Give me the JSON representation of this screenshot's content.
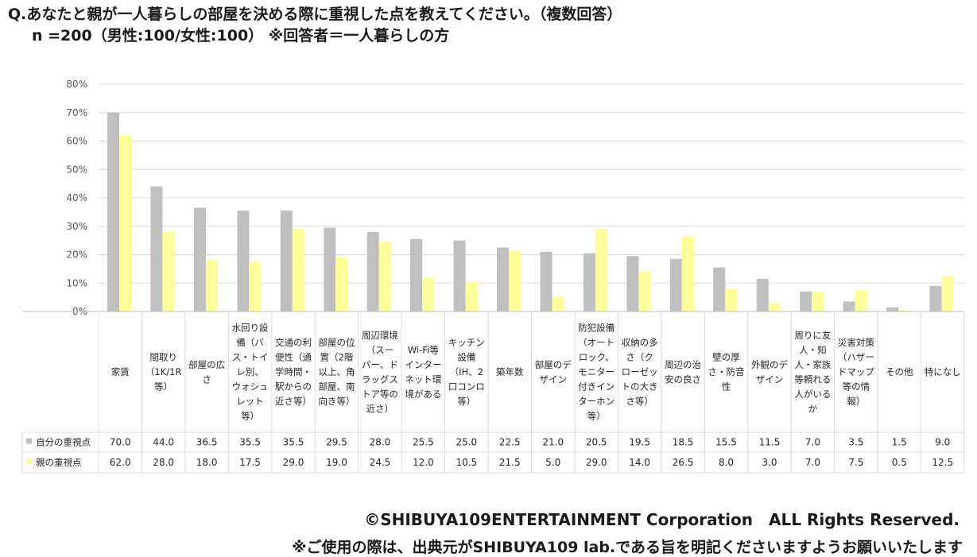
{
  "header": {
    "title": "Q.あなたと親が一人暮らしの部屋を決める際に重視した点を教えてください。（複数回答）",
    "subtitle": "n =200（男性:100/女性:100） ※回答者＝一人暮らしの方"
  },
  "footer": {
    "copyright": "©SHIBUYA109ENTERTAINMENT Corporation　ALL Rights Reserved.",
    "notice": "※ご使用の際は、出典元がSHIBUYA109 lab.である旨を明記くださいますようお願いいたします"
  },
  "chart_data": {
    "type": "bar",
    "ylim": [
      0,
      80
    ],
    "yticks": [
      "0%",
      "10%",
      "20%",
      "30%",
      "40%",
      "50%",
      "60%",
      "70%",
      "80%"
    ],
    "grid": true,
    "categories": [
      [
        "家賃"
      ],
      [
        "間取り",
        "（1K/1R",
        "等）"
      ],
      [
        "部屋の広",
        "さ"
      ],
      [
        "水回り設",
        "備（バ",
        "ス・トイ",
        "レ別、",
        "ウォシュ",
        "レット",
        "等）"
      ],
      [
        "交通の利",
        "便性（通",
        "学時間・",
        "駅からの",
        "近さ等）"
      ],
      [
        "部屋の位",
        "置（2階",
        "以上、角",
        "部屋、南",
        "向き等）"
      ],
      [
        "周辺環境",
        "（スー",
        "パー、ド",
        "ラッグス",
        "トア等の",
        "近さ）"
      ],
      [
        "Wi-Fi等",
        "インター",
        "ネット環",
        "境がある"
      ],
      [
        "キッチン",
        "設備",
        "（IH、2",
        "口コンロ",
        "等）"
      ],
      [
        "築年数"
      ],
      [
        "部屋のデ",
        "ザイン"
      ],
      [
        "防犯設備",
        "（オート",
        "ロック、",
        "モニター",
        "付きイン",
        "ターホン",
        "等）"
      ],
      [
        "収納の多",
        "さ（ク",
        "ローゼッ",
        "トの大き",
        "さ等）"
      ],
      [
        "周辺の治",
        "安の良さ"
      ],
      [
        "壁の厚",
        "さ・防音",
        "性"
      ],
      [
        "外観のデ",
        "ザイン"
      ],
      [
        "周りに友",
        "人・知",
        "人・家族",
        "等頼れる",
        "人がいる",
        "か"
      ],
      [
        "災害対策",
        "（ハザー",
        "ドマップ",
        "等の情",
        "報）"
      ],
      [
        "その他"
      ],
      [
        "特になし"
      ]
    ],
    "series": [
      {
        "name": "自分の重視点",
        "color": "#bfbfbf",
        "values": [
          70.0,
          44.0,
          36.5,
          35.5,
          35.5,
          29.5,
          28.0,
          25.5,
          25.0,
          22.5,
          21.0,
          20.5,
          19.5,
          18.5,
          15.5,
          11.5,
          7.0,
          3.5,
          1.5,
          9.0
        ],
        "labels": [
          "70.0",
          "44.0",
          "36.5",
          "35.5",
          "35.5",
          "29.5",
          "28.0",
          "25.5",
          "25.0",
          "22.5",
          "21.0",
          "20.5",
          "19.5",
          "18.5",
          "15.5",
          "11.5",
          "7.0",
          "3.5",
          "1.5",
          "9.0"
        ]
      },
      {
        "name": "親の重視点",
        "color": "#ffff99",
        "values": [
          62.0,
          28.0,
          18.0,
          17.5,
          29.0,
          19.0,
          24.5,
          12.0,
          10.5,
          21.5,
          5.0,
          29.0,
          14.0,
          26.5,
          8.0,
          3.0,
          7.0,
          7.5,
          0.5,
          12.5
        ],
        "labels": [
          "62.0",
          "28.0",
          "18.0",
          "17.5",
          "29.0",
          "19.0",
          "24.5",
          "12.0",
          "10.5",
          "21.5",
          "5.0",
          "29.0",
          "14.0",
          "26.5",
          "8.0",
          "3.0",
          "7.0",
          "7.5",
          "0.5",
          "12.5"
        ]
      }
    ],
    "legend": "data-table"
  }
}
